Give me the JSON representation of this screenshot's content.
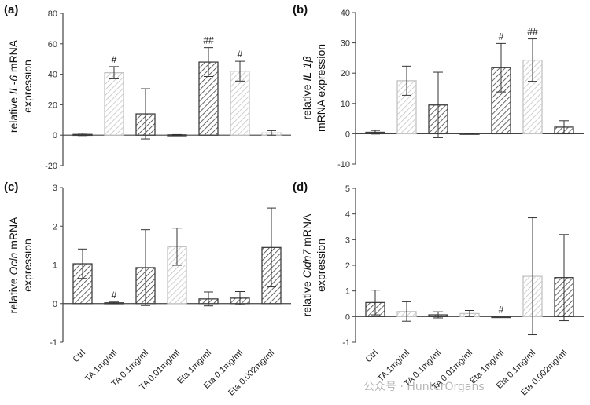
{
  "watermark": "公众号 · HunterOrgans",
  "colors": {
    "dark": "#3f3f3f",
    "light": "#c4c4c4",
    "axis": "#444444"
  },
  "chart_data": [
    {
      "type": "bar",
      "panel": "(a)",
      "ylabel_prefix": "relative ",
      "ylabel_gene": "IL-6",
      "ylabel_suffix": " mRNA",
      "ylabel_line2": "expression",
      "categories": [
        "Ctrl",
        "TA 1mg/ml",
        "TA 0.1mg/ml",
        "TA 0.01mg/ml",
        "Eta 1mg/ml",
        "Eta 0.1mg/ml",
        "Eta 0.002mg/ml"
      ],
      "values": [
        0.5,
        41,
        14,
        0.2,
        48,
        42,
        1.5
      ],
      "errors": [
        0.8,
        4,
        16.5,
        0.2,
        9.5,
        6.5,
        1.5
      ],
      "significance": [
        "",
        "#",
        "",
        "",
        "##",
        "#",
        ""
      ],
      "shade": [
        "dark",
        "light",
        "dark",
        "dark",
        "dark",
        "light",
        "light"
      ],
      "ylim": [
        -20,
        80
      ],
      "yticks": [
        -20,
        0,
        20,
        40,
        60,
        80
      ]
    },
    {
      "type": "bar",
      "panel": "(b)",
      "ylabel_prefix": "relative ",
      "ylabel_gene": "IL-1β",
      "ylabel_suffix": "",
      "ylabel_line2": "mRNA expression",
      "categories": [
        "Ctrl",
        "TA 1mg/ml",
        "TA 0.1mg/ml",
        "TA 0.01mg/ml",
        "Eta 1mg/ml",
        "Eta 0.1mg/ml",
        "Eta 0.002mg/ml"
      ],
      "values": [
        0.5,
        17.5,
        9.5,
        0.1,
        21.8,
        24.3,
        2.2
      ],
      "errors": [
        0.6,
        4.8,
        10.8,
        0.1,
        8,
        7,
        2.1
      ],
      "significance": [
        "",
        "",
        "",
        "",
        "#",
        "##",
        ""
      ],
      "shade": [
        "dark",
        "light",
        "dark",
        "dark",
        "dark",
        "light",
        "dark"
      ],
      "ylim": [
        -10,
        40
      ],
      "yticks": [
        -10,
        0,
        10,
        20,
        30,
        40
      ]
    },
    {
      "type": "bar",
      "panel": "(c)",
      "ylabel_prefix": "relative ",
      "ylabel_gene": "Ocln",
      "ylabel_suffix": " mRNA",
      "ylabel_line2": "expression",
      "categories": [
        "Ctrl",
        "TA 1mg/ml",
        "TA 0.1mg/ml",
        "TA 0.01mg/ml",
        "Eta 1mg/ml",
        "Eta 0.1mg/ml",
        "Eta 0.002mg/ml"
      ],
      "values": [
        1.03,
        0.02,
        0.93,
        1.47,
        0.12,
        0.14,
        1.45
      ],
      "errors": [
        0.38,
        0.02,
        0.98,
        0.48,
        0.18,
        0.17,
        1.02
      ],
      "significance": [
        "",
        "#",
        "",
        "",
        "",
        "",
        ""
      ],
      "shade": [
        "dark",
        "dark",
        "dark",
        "light",
        "dark",
        "dark",
        "dark"
      ],
      "ylim": [
        -1,
        3
      ],
      "yticks": [
        -1,
        0,
        1,
        2,
        3
      ]
    },
    {
      "type": "bar",
      "panel": "(d)",
      "ylabel_prefix": "relative ",
      "ylabel_gene": "Cldn7",
      "ylabel_suffix": " mRNA",
      "ylabel_line2": "expression",
      "categories": [
        "Ctrl",
        "TA 1mg/ml",
        "TA 0.1mg/ml",
        "TA 0.01mg/ml",
        "Eta 1mg/ml",
        "Eta 0.1mg/ml",
        "Eta 0.002mg/ml"
      ],
      "values": [
        0.55,
        0.2,
        0.07,
        0.12,
        0,
        1.57,
        1.52
      ],
      "errors": [
        0.48,
        0.38,
        0.12,
        0.12,
        0,
        2.28,
        1.68
      ],
      "significance": [
        "",
        "",
        "",
        "",
        "#",
        "",
        ""
      ],
      "shade": [
        "dark",
        "light",
        "dark",
        "light",
        "dark",
        "light",
        "dark"
      ],
      "ylim": [
        -1,
        5
      ],
      "yticks": [
        -1,
        0,
        1,
        2,
        3,
        4,
        5
      ]
    }
  ]
}
